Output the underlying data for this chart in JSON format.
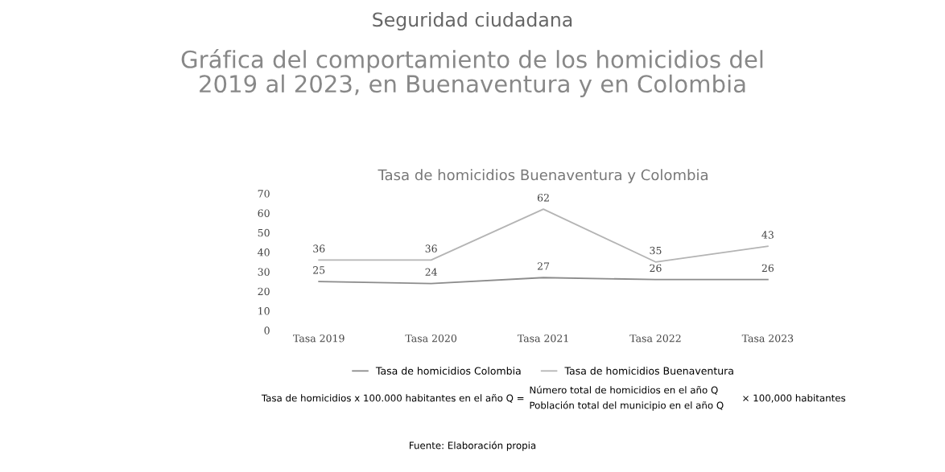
{
  "chart_data": {
    "type": "line",
    "title": "Tasa de homicidios Buenaventura y Colombia",
    "annotations": [
      "Seguridad ciudadana",
      "Gráfica del comportamiento de los homicidios del\n2019 al 2023, en Buenaventura y en Colombia",
      "Tasa de homicidios x 100.000 habitantes en el año Q =",
      "Número total de homicidios en el año Q",
      "Población total del municipio en el año Q",
      "× 100,000 habitantes",
      "Fuente: Elaboración propia"
    ],
    "categories": [
      "Tasa 2019",
      "Tasa 2020",
      "Tasa 2021",
      "Tasa 2022",
      "Tasa 2023"
    ],
    "series": [
      {
        "name": "Tasa de homicidios Colombia",
        "color": "#8c8c8c",
        "values": [
          25,
          24,
          27,
          26,
          26
        ]
      },
      {
        "name": "Tasa de homicidios Buenaventura",
        "color": "#b4b4b4",
        "values": [
          36,
          36,
          62,
          35,
          43
        ]
      }
    ],
    "ylim": [
      0,
      70
    ],
    "yticks": [
      0,
      10,
      20,
      30,
      40,
      50,
      60,
      70
    ],
    "data_labels": true,
    "legend": "bottom",
    "grid": false,
    "marker": "none",
    "line_style": "solid"
  }
}
